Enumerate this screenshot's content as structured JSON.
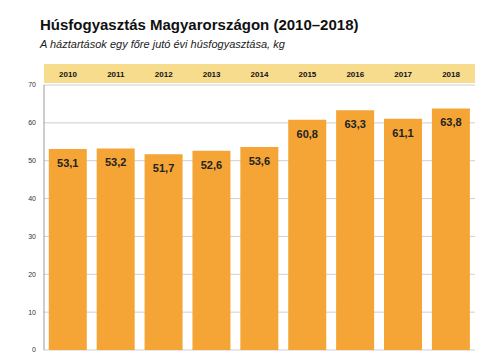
{
  "chart_data": {
    "type": "bar",
    "title": "Húsfogyasztás Magyarországon (2010–2018)",
    "subtitle": "A háztartások egy főre jutó évi húsfogyasztása, kg",
    "categories": [
      "2010",
      "2011",
      "2012",
      "2013",
      "2014",
      "2015",
      "2016",
      "2017",
      "2018"
    ],
    "values": [
      53.1,
      53.2,
      51.7,
      52.6,
      53.6,
      60.8,
      63.3,
      61.1,
      63.8
    ],
    "value_labels": [
      "53,1",
      "53,2",
      "51,7",
      "52,6",
      "53,6",
      "60,8",
      "63,3",
      "61,1",
      "63,8"
    ],
    "color": "#f4a535",
    "ylim": [
      0,
      70
    ],
    "yticks": [
      0,
      10,
      20,
      30,
      40,
      50,
      60,
      70
    ],
    "grid": true,
    "data_labels": true
  }
}
